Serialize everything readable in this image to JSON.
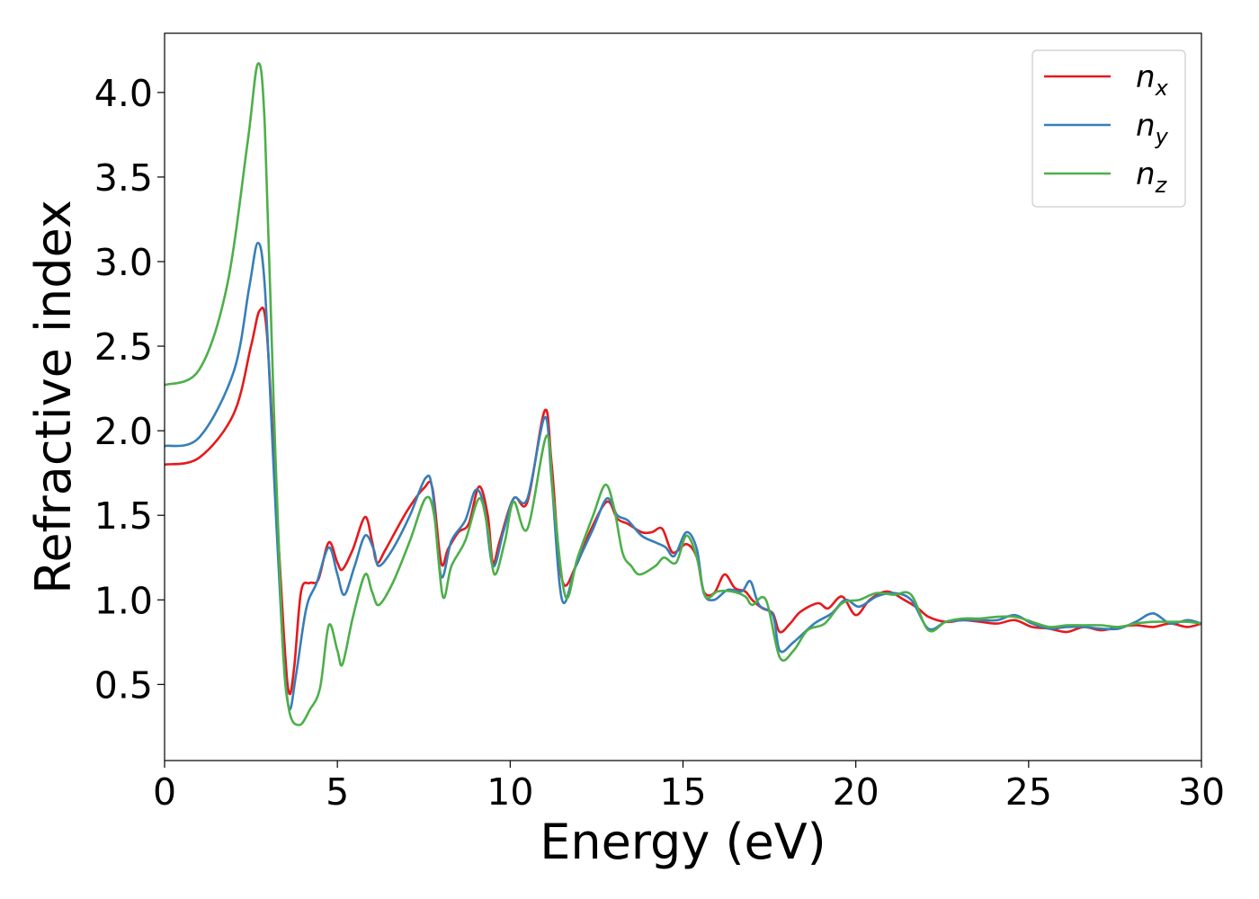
{
  "chart_data": {
    "type": "line",
    "xlabel": "Energy (eV)",
    "ylabel": "Refractive index",
    "xlim": [
      0,
      30
    ],
    "ylim": [
      0.05,
      4.35
    ],
    "xticks": [
      "0",
      "5",
      "10",
      "15",
      "20",
      "25",
      "30"
    ],
    "yticks": [
      "0.5",
      "1.0",
      "1.5",
      "2.0",
      "2.5",
      "3.0",
      "3.5",
      "4.0"
    ],
    "grid": false,
    "legend_position": "top-right",
    "series": [
      {
        "name": "n",
        "subscript": "x",
        "color": "#e41a1c",
        "points": [
          [
            0,
            1.8
          ],
          [
            1.0,
            1.84
          ],
          [
            2.0,
            2.1
          ],
          [
            2.5,
            2.5
          ],
          [
            2.75,
            2.71
          ],
          [
            2.95,
            2.6
          ],
          [
            3.2,
            1.7
          ],
          [
            3.45,
            0.8
          ],
          [
            3.6,
            0.45
          ],
          [
            3.75,
            0.6
          ],
          [
            3.95,
            1.05
          ],
          [
            4.2,
            1.1
          ],
          [
            4.45,
            1.12
          ],
          [
            4.75,
            1.34
          ],
          [
            5.0,
            1.22
          ],
          [
            5.15,
            1.18
          ],
          [
            5.45,
            1.3
          ],
          [
            5.8,
            1.49
          ],
          [
            6.0,
            1.35
          ],
          [
            6.15,
            1.22
          ],
          [
            6.4,
            1.3
          ],
          [
            7.0,
            1.52
          ],
          [
            7.5,
            1.66
          ],
          [
            7.75,
            1.66
          ],
          [
            8.0,
            1.22
          ],
          [
            8.2,
            1.3
          ],
          [
            8.5,
            1.4
          ],
          [
            8.8,
            1.45
          ],
          [
            9.1,
            1.67
          ],
          [
            9.35,
            1.5
          ],
          [
            9.5,
            1.22
          ],
          [
            9.7,
            1.35
          ],
          [
            10.1,
            1.6
          ],
          [
            10.5,
            1.58
          ],
          [
            11.0,
            2.12
          ],
          [
            11.2,
            1.8
          ],
          [
            11.5,
            1.12
          ],
          [
            11.9,
            1.2
          ],
          [
            12.3,
            1.4
          ],
          [
            12.8,
            1.58
          ],
          [
            13.1,
            1.48
          ],
          [
            13.4,
            1.45
          ],
          [
            13.8,
            1.4
          ],
          [
            14.1,
            1.4
          ],
          [
            14.4,
            1.42
          ],
          [
            14.7,
            1.28
          ],
          [
            15.1,
            1.33
          ],
          [
            15.4,
            1.25
          ],
          [
            15.6,
            1.05
          ],
          [
            15.9,
            1.04
          ],
          [
            16.2,
            1.15
          ],
          [
            16.5,
            1.07
          ],
          [
            16.8,
            1.05
          ],
          [
            17.0,
            1.0
          ],
          [
            17.3,
            0.95
          ],
          [
            17.6,
            0.92
          ],
          [
            17.8,
            0.81
          ],
          [
            18.1,
            0.86
          ],
          [
            18.4,
            0.93
          ],
          [
            18.9,
            0.98
          ],
          [
            19.2,
            0.95
          ],
          [
            19.6,
            1.02
          ],
          [
            20.0,
            0.91
          ],
          [
            20.4,
            1.0
          ],
          [
            20.9,
            1.05
          ],
          [
            21.4,
            1.0
          ],
          [
            21.8,
            0.95
          ],
          [
            22.1,
            0.9
          ],
          [
            22.6,
            0.87
          ],
          [
            23.1,
            0.88
          ],
          [
            23.6,
            0.87
          ],
          [
            24.1,
            0.86
          ],
          [
            24.6,
            0.88
          ],
          [
            25.1,
            0.84
          ],
          [
            25.6,
            0.83
          ],
          [
            26.1,
            0.81
          ],
          [
            26.6,
            0.84
          ],
          [
            27.1,
            0.82
          ],
          [
            27.6,
            0.84
          ],
          [
            28.1,
            0.85
          ],
          [
            28.6,
            0.84
          ],
          [
            29.1,
            0.86
          ],
          [
            29.6,
            0.84
          ],
          [
            30,
            0.86
          ]
        ]
      },
      {
        "name": "n",
        "subscript": "y",
        "color": "#377eb8",
        "points": [
          [
            0,
            1.91
          ],
          [
            1.0,
            1.96
          ],
          [
            2.0,
            2.35
          ],
          [
            2.45,
            2.85
          ],
          [
            2.7,
            3.11
          ],
          [
            2.9,
            2.85
          ],
          [
            3.15,
            1.8
          ],
          [
            3.4,
            0.8
          ],
          [
            3.6,
            0.36
          ],
          [
            3.8,
            0.55
          ],
          [
            4.1,
            0.95
          ],
          [
            4.4,
            1.1
          ],
          [
            4.75,
            1.31
          ],
          [
            5.0,
            1.15
          ],
          [
            5.2,
            1.03
          ],
          [
            5.5,
            1.2
          ],
          [
            5.8,
            1.38
          ],
          [
            6.05,
            1.3
          ],
          [
            6.2,
            1.2
          ],
          [
            6.6,
            1.3
          ],
          [
            7.1,
            1.5
          ],
          [
            7.55,
            1.72
          ],
          [
            7.75,
            1.65
          ],
          [
            8.0,
            1.14
          ],
          [
            8.3,
            1.35
          ],
          [
            8.7,
            1.47
          ],
          [
            9.0,
            1.65
          ],
          [
            9.25,
            1.55
          ],
          [
            9.5,
            1.2
          ],
          [
            9.8,
            1.4
          ],
          [
            10.1,
            1.6
          ],
          [
            10.5,
            1.6
          ],
          [
            11.0,
            2.08
          ],
          [
            11.2,
            1.7
          ],
          [
            11.5,
            1.0
          ],
          [
            11.9,
            1.2
          ],
          [
            12.4,
            1.42
          ],
          [
            12.8,
            1.6
          ],
          [
            13.1,
            1.5
          ],
          [
            13.4,
            1.47
          ],
          [
            13.8,
            1.38
          ],
          [
            14.2,
            1.34
          ],
          [
            14.5,
            1.31
          ],
          [
            14.75,
            1.26
          ],
          [
            15.1,
            1.4
          ],
          [
            15.4,
            1.3
          ],
          [
            15.6,
            1.04
          ],
          [
            15.9,
            1.0
          ],
          [
            16.3,
            1.06
          ],
          [
            16.7,
            1.05
          ],
          [
            16.95,
            1.11
          ],
          [
            17.2,
            0.97
          ],
          [
            17.6,
            0.91
          ],
          [
            17.8,
            0.7
          ],
          [
            18.2,
            0.75
          ],
          [
            18.8,
            0.86
          ],
          [
            19.3,
            0.92
          ],
          [
            19.7,
            1.0
          ],
          [
            20.1,
            0.96
          ],
          [
            20.6,
            1.02
          ],
          [
            21.1,
            1.04
          ],
          [
            21.6,
            1.0
          ],
          [
            22.1,
            0.83
          ],
          [
            22.6,
            0.87
          ],
          [
            23.1,
            0.88
          ],
          [
            23.6,
            0.88
          ],
          [
            24.1,
            0.88
          ],
          [
            24.6,
            0.91
          ],
          [
            25.1,
            0.86
          ],
          [
            25.6,
            0.83
          ],
          [
            26.1,
            0.84
          ],
          [
            26.6,
            0.84
          ],
          [
            27.1,
            0.83
          ],
          [
            27.6,
            0.83
          ],
          [
            28.1,
            0.87
          ],
          [
            28.6,
            0.92
          ],
          [
            29.1,
            0.86
          ],
          [
            29.6,
            0.88
          ],
          [
            30,
            0.86
          ]
        ]
      },
      {
        "name": "n",
        "subscript": "z",
        "color": "#4daf4a",
        "points": [
          [
            0,
            2.27
          ],
          [
            1.0,
            2.36
          ],
          [
            1.8,
            2.85
          ],
          [
            2.4,
            3.7
          ],
          [
            2.7,
            4.17
          ],
          [
            2.9,
            3.8
          ],
          [
            3.15,
            2.2
          ],
          [
            3.4,
            0.8
          ],
          [
            3.6,
            0.35
          ],
          [
            3.9,
            0.26
          ],
          [
            4.2,
            0.35
          ],
          [
            4.5,
            0.48
          ],
          [
            4.75,
            0.85
          ],
          [
            5.0,
            0.7
          ],
          [
            5.15,
            0.62
          ],
          [
            5.45,
            0.9
          ],
          [
            5.8,
            1.15
          ],
          [
            6.0,
            1.05
          ],
          [
            6.2,
            0.97
          ],
          [
            6.6,
            1.1
          ],
          [
            7.1,
            1.35
          ],
          [
            7.55,
            1.6
          ],
          [
            7.8,
            1.5
          ],
          [
            8.05,
            1.02
          ],
          [
            8.3,
            1.2
          ],
          [
            8.7,
            1.35
          ],
          [
            9.1,
            1.6
          ],
          [
            9.35,
            1.42
          ],
          [
            9.55,
            1.15
          ],
          [
            9.85,
            1.35
          ],
          [
            10.1,
            1.58
          ],
          [
            10.5,
            1.42
          ],
          [
            11.05,
            1.97
          ],
          [
            11.25,
            1.6
          ],
          [
            11.6,
            1.02
          ],
          [
            11.95,
            1.25
          ],
          [
            12.4,
            1.5
          ],
          [
            12.75,
            1.68
          ],
          [
            13.0,
            1.55
          ],
          [
            13.25,
            1.28
          ],
          [
            13.5,
            1.2
          ],
          [
            13.75,
            1.15
          ],
          [
            14.2,
            1.2
          ],
          [
            14.45,
            1.25
          ],
          [
            14.8,
            1.22
          ],
          [
            15.1,
            1.38
          ],
          [
            15.4,
            1.25
          ],
          [
            15.65,
            1.02
          ],
          [
            16.0,
            1.05
          ],
          [
            16.4,
            1.05
          ],
          [
            16.8,
            1.02
          ],
          [
            17.0,
            0.97
          ],
          [
            17.4,
            1.0
          ],
          [
            17.8,
            0.66
          ],
          [
            18.2,
            0.7
          ],
          [
            18.6,
            0.82
          ],
          [
            19.1,
            0.86
          ],
          [
            19.6,
            0.98
          ],
          [
            20.1,
            1.0
          ],
          [
            20.6,
            1.04
          ],
          [
            21.1,
            1.03
          ],
          [
            21.6,
            1.03
          ],
          [
            22.1,
            0.82
          ],
          [
            22.6,
            0.87
          ],
          [
            23.1,
            0.89
          ],
          [
            23.6,
            0.89
          ],
          [
            24.1,
            0.9
          ],
          [
            24.6,
            0.9
          ],
          [
            25.1,
            0.87
          ],
          [
            25.6,
            0.84
          ],
          [
            26.1,
            0.85
          ],
          [
            26.6,
            0.85
          ],
          [
            27.1,
            0.85
          ],
          [
            27.6,
            0.84
          ],
          [
            28.1,
            0.86
          ],
          [
            28.6,
            0.87
          ],
          [
            29.1,
            0.87
          ],
          [
            29.6,
            0.87
          ],
          [
            30,
            0.86
          ]
        ]
      }
    ]
  }
}
